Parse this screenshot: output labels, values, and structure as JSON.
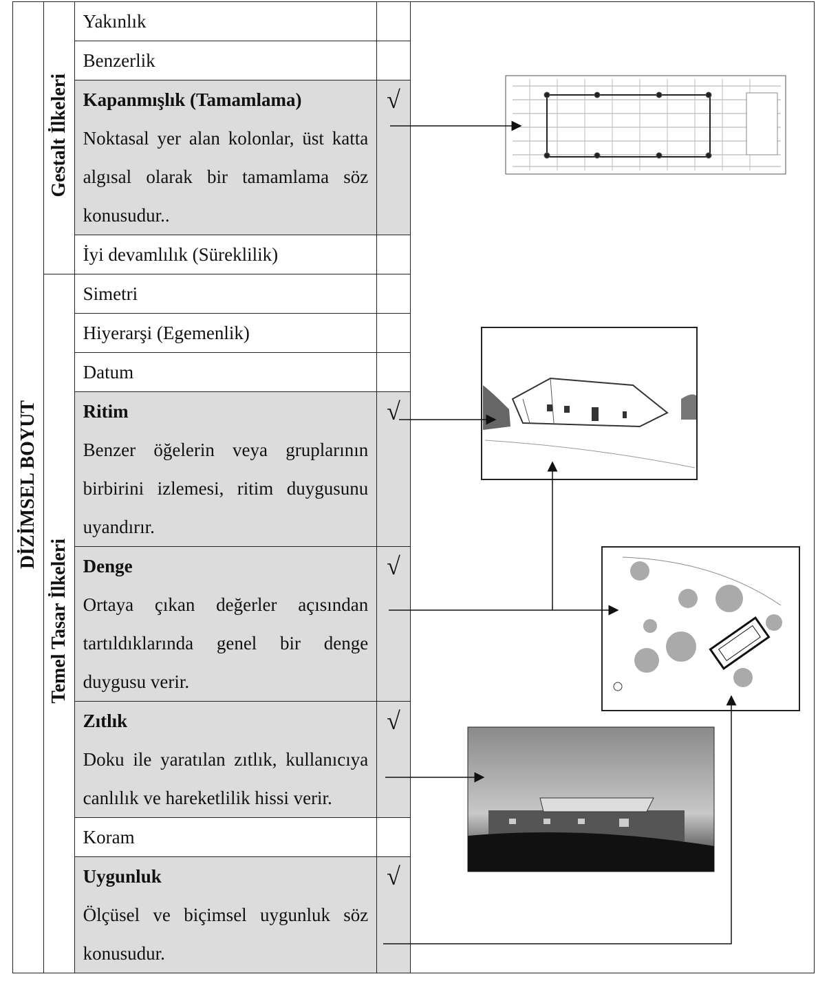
{
  "dimension": "DİZİMSEL BOYUT",
  "groups": [
    {
      "label": "Gestalt İlkeleri",
      "rows": [
        {
          "name": "Yakınlık"
        },
        {
          "name": "Benzerlik"
        },
        {
          "name": "Kapanmışlık (Tamamlama)",
          "check": "√",
          "description": "Noktasal yer alan kolonlar, üst katta algısal olarak bir tamamlama söz konusudur.."
        },
        {
          "name": "İyi devamlılık (Süreklilik)"
        }
      ]
    },
    {
      "label": "Temel Tasar İlkeleri",
      "rows": [
        {
          "name": "Simetri"
        },
        {
          "name": "Hiyerarşi (Egemenlik)"
        },
        {
          "name": "Datum"
        },
        {
          "name": "Ritim",
          "check": "√",
          "description": "Benzer öğelerin veya gruplarının birbirini izlemesi, ritim duygusunu uyandırır."
        },
        {
          "name": "Denge",
          "check": "√",
          "description": "Ortaya çıkan değerler açısından tartıldıklarında genel bir denge duygusu verir."
        },
        {
          "name": "Zıtlık",
          "check": "√",
          "description": "Doku ile yaratılan zıtlık, kullanıcıya canlılık ve hareketlilik hissi verir."
        },
        {
          "name": "Koram"
        },
        {
          "name": "Uygunluk",
          "check": "√",
          "description": "Ölçüsel ve biçimsel uygunluk söz konusudur."
        }
      ]
    }
  ]
}
